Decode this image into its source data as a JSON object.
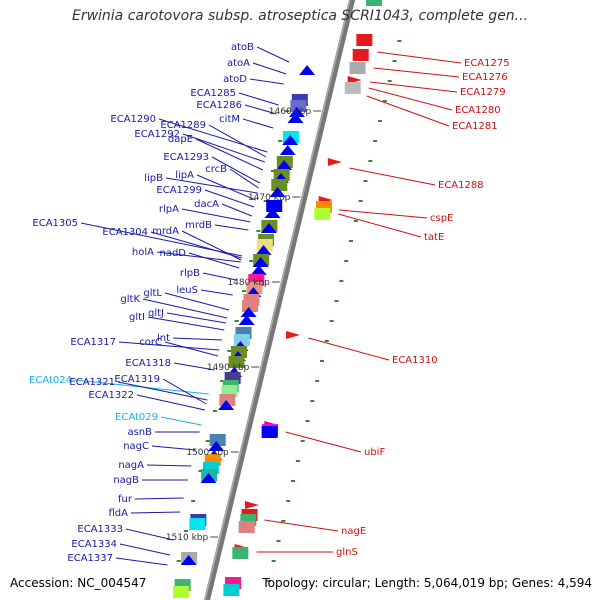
{
  "title": "Erwinia carotovora subsp. atroseptica SCRI1043, complete gen...",
  "footer": {
    "accession": "Accession: NC_004547",
    "summary": "Topology: circular; Length: 5,064,019 bp; Genes: 4,594"
  },
  "colors": {
    "left_label": "#1a1aa8",
    "right_label": "#cc1111",
    "rna_label": "#1ab0e6",
    "backbone": "#777777"
  },
  "kbp_marks": [
    "1460 kbp",
    "1470 kbp",
    "1480 kbp",
    "1490 kbp",
    "1500 kbp",
    "1510 kbp"
  ],
  "left_labels": [
    "atoB",
    "atoA",
    "atoD",
    "ECA1285",
    "ECA1286",
    "citM",
    "ECA1290",
    "ECA1289",
    "ECA1292",
    "dapE",
    "ECA1293",
    "crcB",
    "lipB",
    "lipA",
    "ECA1299",
    "dacA",
    "rlpA",
    "mrdB",
    "ECA1305",
    "ECA1304",
    "mrdA",
    "holA",
    "nadD",
    "rlpB",
    "leuS",
    "gltL",
    "gltK",
    "gltJ",
    "gltI",
    "lnt",
    "ECA1317",
    "corC",
    "ECA1318",
    "ECAt024",
    "ECA1321",
    "ECA1319",
    "ECA1322",
    "ECAt029",
    "asnB",
    "nagC",
    "nagA",
    "nagB",
    "fur",
    "fldA",
    "ECA1333",
    "ECA1334",
    "ECA1337"
  ],
  "right_labels": [
    "ECA1275",
    "ECA1276",
    "ECA1279",
    "ECA1280",
    "ECA1281",
    "ECA1288",
    "cspE",
    "tatE",
    "ECA1310",
    "ubiF",
    "nagE",
    "glnS"
  ]
}
